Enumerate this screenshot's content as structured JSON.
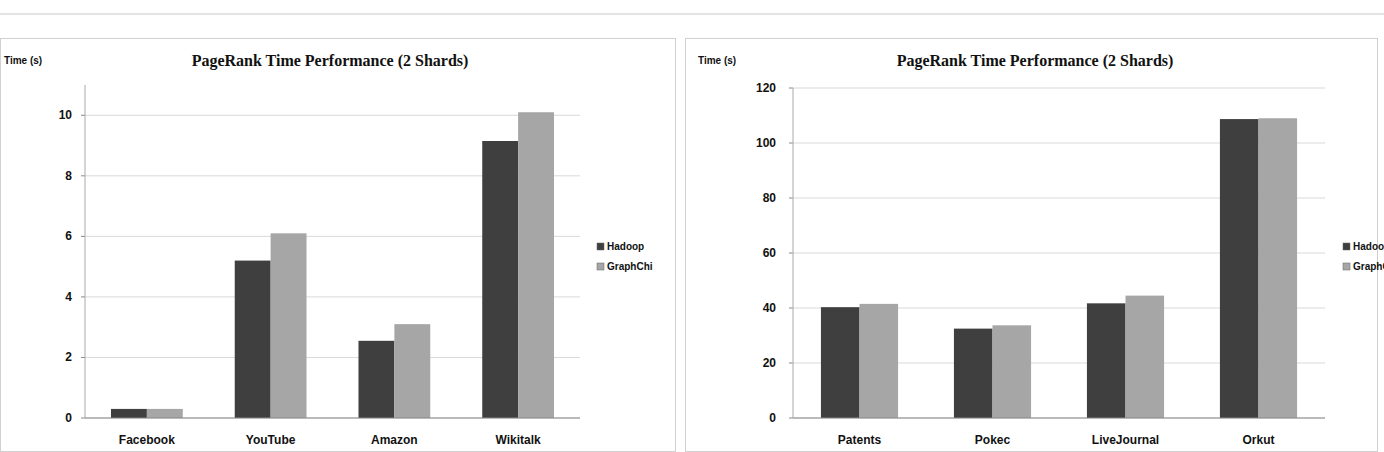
{
  "chart_data": [
    {
      "type": "bar",
      "title": "PageRank Time Performance (2 Shards)",
      "y_label": "Time (s)",
      "categories": [
        "Facebook",
        "YouTube",
        "Amazon",
        "Wikitalk"
      ],
      "series": [
        {
          "name": "Hadoop",
          "color": "#3f3f3f",
          "values": [
            0.3,
            5.2,
            2.55,
            9.15
          ]
        },
        {
          "name": "GraphChi",
          "color": "#a6a6a6",
          "values": [
            0.3,
            6.1,
            3.1,
            10.1
          ]
        }
      ],
      "ylim": [
        0,
        11
      ],
      "yticks": [
        0,
        2,
        4,
        6,
        8,
        10
      ],
      "grid": true,
      "legend": "right"
    },
    {
      "type": "bar",
      "title": "PageRank Time Performance (2 Shards)",
      "y_label": "Time (s)",
      "categories": [
        "Patents",
        "Pokec",
        "LiveJournal",
        "Orkut"
      ],
      "series": [
        {
          "name": "Hadoop",
          "color": "#3f3f3f",
          "values": [
            40.3,
            32.5,
            41.7,
            108.7
          ]
        },
        {
          "name": "GraphChi",
          "color": "#a6a6a6",
          "values": [
            41.5,
            33.7,
            44.5,
            109.0
          ]
        }
      ],
      "ylim": [
        0,
        120
      ],
      "yticks": [
        0,
        20,
        40,
        60,
        80,
        100,
        120
      ],
      "grid": true,
      "legend": "right"
    }
  ]
}
